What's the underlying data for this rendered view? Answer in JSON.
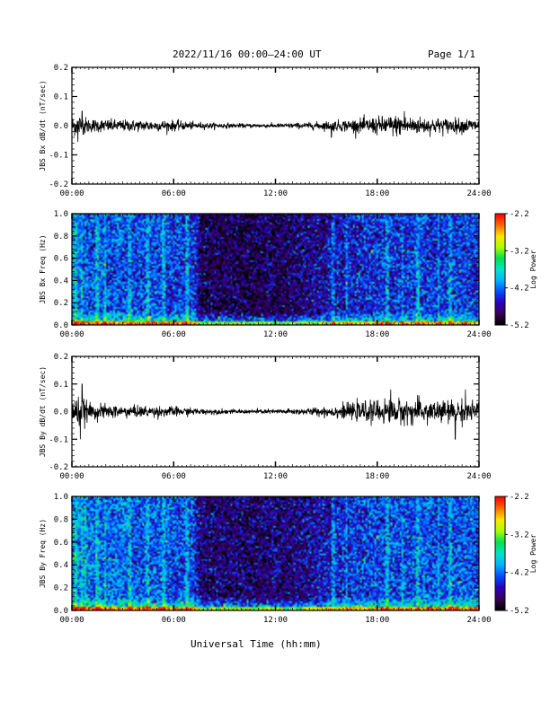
{
  "header": {
    "date_range": "2022/11/16  00:00–24:00 UT",
    "page": "Page 1/1"
  },
  "footer": {
    "xlabel": "Universal Time (hh:mm)"
  },
  "colors": {
    "trace": "#000000",
    "frame": "#000000"
  },
  "colormap": [
    "#000000",
    "#3a005a",
    "#2a00c0",
    "#0050ff",
    "#00b4ff",
    "#00e6c8",
    "#00e050",
    "#aaff00",
    "#ffe600",
    "#ff6a00",
    "#ff0000"
  ],
  "chart_data": [
    {
      "id": "bx-ts",
      "type": "line",
      "ylabel": "JBS Bx dB/dt (nT/sec)",
      "xticks": [
        "00:00",
        "06:00",
        "12:00",
        "18:00",
        "24:00"
      ],
      "xlim": [
        0,
        24
      ],
      "ylim": [
        -0.2,
        0.2
      ],
      "yticks": [
        "0.2",
        "0.1",
        "0.0",
        "-0.1",
        "-0.2"
      ],
      "amplitude_profile": [
        {
          "x": 0.0,
          "y": 0.018
        },
        {
          "x": 0.5,
          "y": 0.022
        },
        {
          "x": 1.0,
          "y": 0.013
        },
        {
          "x": 3.0,
          "y": 0.011
        },
        {
          "x": 6.0,
          "y": 0.01
        },
        {
          "x": 7.5,
          "y": 0.006
        },
        {
          "x": 10.0,
          "y": 0.004
        },
        {
          "x": 12.0,
          "y": 0.004
        },
        {
          "x": 14.0,
          "y": 0.006
        },
        {
          "x": 15.5,
          "y": 0.01
        },
        {
          "x": 17.0,
          "y": 0.013
        },
        {
          "x": 19.0,
          "y": 0.02
        },
        {
          "x": 20.5,
          "y": 0.016
        },
        {
          "x": 22.0,
          "y": 0.014
        },
        {
          "x": 24.0,
          "y": 0.013
        }
      ],
      "spikes": [
        {
          "x": 0.35,
          "y": -0.055
        },
        {
          "x": 0.6,
          "y": 0.05
        },
        {
          "x": 15.3,
          "y": -0.04
        },
        {
          "x": 19.6,
          "y": 0.05
        }
      ]
    },
    {
      "id": "bx-spec",
      "type": "heatmap",
      "ylabel": "JBS Bx Freq (Hz)",
      "xticks": [
        "00:00",
        "06:00",
        "12:00",
        "18:00",
        "24:00"
      ],
      "xlim": [
        0,
        24
      ],
      "ylim": [
        0,
        1.0
      ],
      "yticks": [
        "1.0",
        "0.8",
        "0.6",
        "0.4",
        "0.2",
        "0.0"
      ],
      "colorbar": {
        "label": "Log Power",
        "ticks": [
          "-2.2",
          "-3.2",
          "-4.2",
          "-5.2"
        ],
        "range": [
          -5.2,
          -2.2
        ]
      },
      "background_level": [
        {
          "t": 0.0,
          "v": -4.2
        },
        {
          "t": 1.0,
          "v": -4.3
        },
        {
          "t": 5.0,
          "v": -4.35
        },
        {
          "t": 7.2,
          "v": -4.4
        },
        {
          "t": 7.6,
          "v": -4.95
        },
        {
          "t": 12.0,
          "v": -4.95
        },
        {
          "t": 14.0,
          "v": -4.8
        },
        {
          "t": 15.5,
          "v": -4.6
        },
        {
          "t": 18.0,
          "v": -4.45
        },
        {
          "t": 24.0,
          "v": -4.4
        }
      ],
      "bright_columns": [
        0.15,
        0.3,
        0.55,
        1.5,
        2.0,
        3.4,
        4.4,
        4.5,
        5.4,
        6.8,
        15.4,
        16.2,
        18.6,
        19.5,
        20.4,
        21.6,
        22.3
      ]
    },
    {
      "id": "by-ts",
      "type": "line",
      "ylabel": "JBS By dB/dt (nT/sec)",
      "xticks": [
        "00:00",
        "06:00",
        "12:00",
        "18:00",
        "24:00"
      ],
      "xlim": [
        0,
        24
      ],
      "ylim": [
        -0.2,
        0.2
      ],
      "yticks": [
        "0.2",
        "0.1",
        "0.0",
        "-0.1",
        "-0.2"
      ],
      "amplitude_profile": [
        {
          "x": 0.0,
          "y": 0.022
        },
        {
          "x": 0.5,
          "y": 0.03
        },
        {
          "x": 1.0,
          "y": 0.016
        },
        {
          "x": 3.0,
          "y": 0.012
        },
        {
          "x": 6.0,
          "y": 0.01
        },
        {
          "x": 7.5,
          "y": 0.006
        },
        {
          "x": 10.0,
          "y": 0.004
        },
        {
          "x": 12.0,
          "y": 0.005
        },
        {
          "x": 14.0,
          "y": 0.007
        },
        {
          "x": 15.5,
          "y": 0.012
        },
        {
          "x": 17.0,
          "y": 0.018
        },
        {
          "x": 18.5,
          "y": 0.024
        },
        {
          "x": 20.5,
          "y": 0.024
        },
        {
          "x": 22.0,
          "y": 0.022
        },
        {
          "x": 24.0,
          "y": 0.02
        }
      ],
      "spikes": [
        {
          "x": 0.5,
          "y": -0.1
        },
        {
          "x": 0.6,
          "y": 0.1
        },
        {
          "x": 18.8,
          "y": 0.08
        },
        {
          "x": 22.6,
          "y": -0.1
        },
        {
          "x": 23.2,
          "y": 0.08
        }
      ]
    },
    {
      "id": "by-spec",
      "type": "heatmap",
      "ylabel": "JBS By Freq (Hz)",
      "xticks": [
        "00:00",
        "06:00",
        "12:00",
        "18:00",
        "24:00"
      ],
      "xlim": [
        0,
        24
      ],
      "ylim": [
        0,
        1.0
      ],
      "yticks": [
        "1.0",
        "0.8",
        "0.6",
        "0.4",
        "0.2",
        "0.0"
      ],
      "colorbar": {
        "label": "Log Power",
        "ticks": [
          "-2.2",
          "-3.2",
          "-4.2",
          "-5.2"
        ],
        "range": [
          -5.2,
          -2.2
        ]
      },
      "background_level": [
        {
          "t": 0.0,
          "v": -4.1
        },
        {
          "t": 1.0,
          "v": -4.2
        },
        {
          "t": 5.0,
          "v": -4.3
        },
        {
          "t": 7.2,
          "v": -4.35
        },
        {
          "t": 7.6,
          "v": -4.85
        },
        {
          "t": 12.0,
          "v": -4.85
        },
        {
          "t": 14.0,
          "v": -4.75
        },
        {
          "t": 15.5,
          "v": -4.5
        },
        {
          "t": 18.0,
          "v": -4.35
        },
        {
          "t": 24.0,
          "v": -4.3
        }
      ],
      "bright_columns": [
        0.15,
        0.3,
        0.55,
        0.8,
        1.5,
        2.0,
        3.4,
        4.4,
        4.5,
        5.4,
        6.8,
        15.4,
        16.2,
        18.6,
        19.5,
        20.4,
        21.6,
        22.3
      ]
    }
  ]
}
